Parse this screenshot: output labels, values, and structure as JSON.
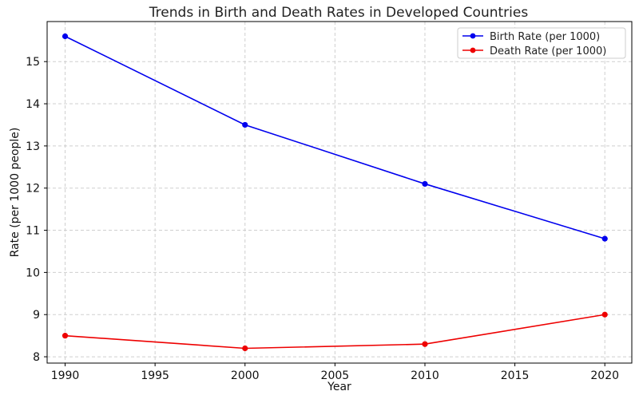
{
  "chart_data": {
    "type": "line",
    "title": "Trends in Birth and Death Rates in Developed Countries",
    "xlabel": "Year",
    "ylabel": "Rate (per 1000 people)",
    "x": [
      1990,
      2000,
      2010,
      2020
    ],
    "xlim": [
      1989,
      2021.5
    ],
    "ylim": [
      7.85,
      15.95
    ],
    "xticks": [
      1990,
      1995,
      2000,
      2005,
      2010,
      2015,
      2020
    ],
    "yticks": [
      8,
      9,
      10,
      11,
      12,
      13,
      14,
      15
    ],
    "grid": true,
    "legend_position": "top-right",
    "series": [
      {
        "name": "Birth Rate (per 1000)",
        "color": "#0000ee",
        "values": [
          15.6,
          13.5,
          12.1,
          10.8
        ]
      },
      {
        "name": "Death Rate (per 1000)",
        "color": "#ee0000",
        "values": [
          8.5,
          8.2,
          8.3,
          9.0
        ]
      }
    ]
  }
}
